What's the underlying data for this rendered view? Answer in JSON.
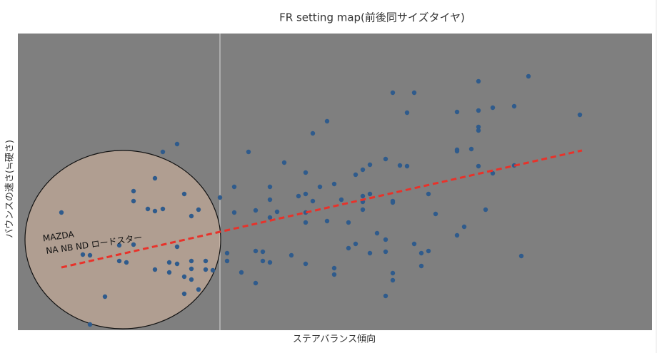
{
  "chart_data": {
    "type": "scatter",
    "title": "FR setting map(前後同サイズタイヤ)",
    "x_label": "ステアバランス傾向",
    "y_label": "バウンスの速さ(≒硬さ)",
    "annotation": [
      "MAZDA",
      "NA NB ND ロードスター"
    ],
    "xlim": [
      0,
      888
    ],
    "ylim": [
      0,
      416
    ],
    "color": "#2f5b8c",
    "x": [
      61,
      101,
      91,
      122,
      101,
      162,
      162,
      142,
      142,
      152,
      162,
      182,
      192,
      192,
      203,
      203,
      223,
      233,
      243,
      253,
      223,
      192,
      212,
      212,
      223,
      233,
      243,
      243,
      243,
      263,
      263,
      273,
      233,
      253,
      283,
      293,
      293,
      303,
      303,
      313,
      323,
      333,
      333,
      333,
      343,
      353,
      353,
      353,
      353,
      343,
      363,
      373,
      383,
      393,
      403,
      403,
      403,
      403,
      403,
      413,
      413,
      423,
      433,
      433,
      443,
      443,
      443,
      453,
      463,
      463,
      473,
      473,
      483,
      483,
      483,
      483,
      493,
      493,
      493,
      503,
      515,
      515,
      515,
      515,
      525,
      525,
      525,
      525,
      525,
      535,
      545,
      545,
      555,
      555,
      565,
      565,
      575,
      575,
      585,
      615,
      615,
      615,
      615,
      625,
      635,
      645,
      645,
      645,
      645,
      645,
      655,
      665,
      665,
      695,
      695,
      705,
      715,
      787
    ],
    "values": [
      165,
      105,
      106,
      47,
      8,
      195,
      181,
      119,
      97,
      95,
      120,
      170,
      167,
      213,
      170,
      250,
      261,
      191,
      160,
      169,
      117,
      85,
      95,
      81,
      93,
      75,
      97,
      86,
      71,
      97,
      85,
      84,
      51,
      57,
      186,
      108,
      97,
      201,
      165,
      81,
      250,
      168,
      111,
      66,
      110,
      201,
      183,
      158,
      95,
      97,
      166,
      235,
      105,
      188,
      221,
      191,
      165,
      151,
      93,
      276,
      181,
      201,
      293,
      153,
      205,
      87,
      78,
      183,
      151,
      115,
      121,
      218,
      225,
      188,
      180,
      169,
      232,
      191,
      108,
      136,
      127,
      110,
      48,
      240,
      333,
      181,
      179,
      80,
      70,
      231,
      230,
      305,
      333,
      121,
      108,
      90,
      191,
      111,
      163,
      306,
      253,
      251,
      133,
      145,
      254,
      349,
      308,
      285,
      280,
      230,
      169,
      312,
      220,
      314,
      231,
      104,
      356,
      302
    ],
    "trendline": {
      "color": "#e8322a",
      "x": [
        61,
        790
      ],
      "values": [
        88,
        252
      ]
    }
  }
}
